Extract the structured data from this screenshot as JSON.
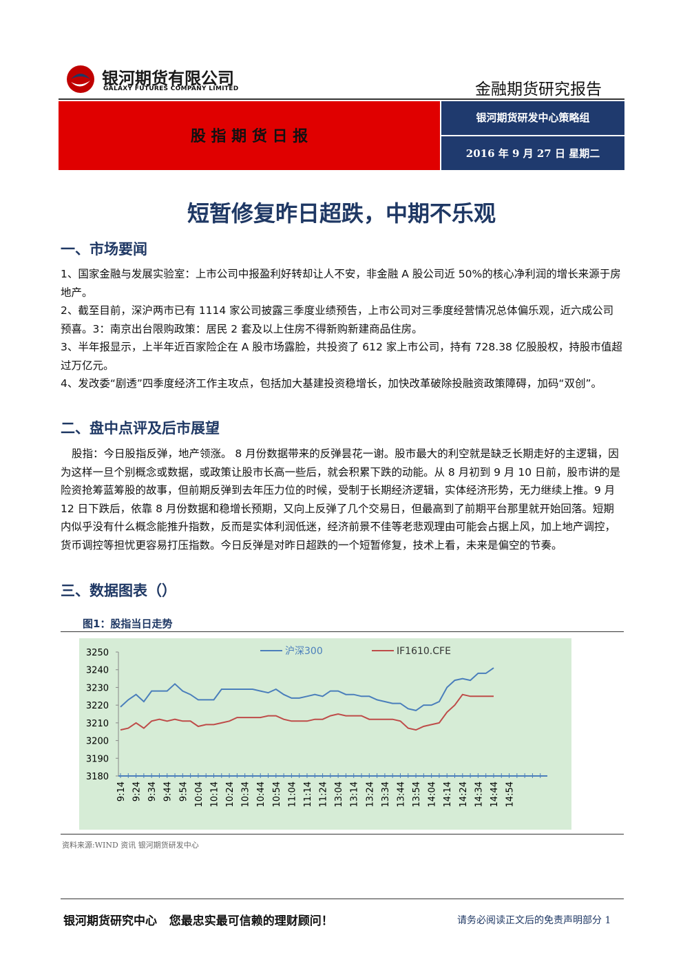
{
  "header": {
    "company_cn": "银河期货有限公司",
    "company_en": "GALAXY FUTURES COMPANY LIMITED",
    "report_type": "金融期货研究报告"
  },
  "banner": {
    "title": "股 指 期 货 日 报",
    "team": "银河期货研发中心策略组",
    "date": "2016 年 9 月 27 日 星期二"
  },
  "title": "短暂修复昨日超跌，中期不乐观",
  "sections": [
    {
      "heading": "一、市场要闻",
      "paragraphs": [
        "1、国家金融与发展实验室：上市公司中报盈利好转却让人不安，非金融 A 股公司近 50%的核心净利润的增长来源于房地产。",
        "2、截至目前，深沪两市已有 1114 家公司披露三季度业绩预告，上市公司对三季度经营情况总体偏乐观，近六成公司预喜。3：南京出台限购政策：居民 2 套及以上住房不得新购新建商品住房。",
        "3、半年报显示，上半年近百家险企在 A 股市场露脸，共投资了 612 家上市公司，持有 728.38 亿股股权，持股市值超过万亿元。",
        "4、发改委“剧透”四季度经济工作主攻点，包括加大基建投资稳增长，加快改革破除投融资政策障碍，加码“双创”。"
      ]
    },
    {
      "heading": "二、盘中点评及后市展望",
      "paragraphs": [
        "股指：今日股指反弹，地产领涨。 8 月份数据带来的反弹昙花一谢。股市最大的利空就是缺乏长期走好的主逻辑，因为这样一旦个别概念或数据，或政策让股市长高一些后，就会积累下跌的动能。从 8 月初到 9 月 10 日前，股市讲的是险资抢筹蓝筹股的故事，但前期反弹到去年压力位的时候，受制于长期经济逻辑，实体经济形势，无力继续上推。9 月 12 日下跌后，依靠 8 月份数据和稳增长预期，又向上反弹了几个交易日，但最高到了前期平台那里就开始回落。短期内似乎没有什么概念能推升指数，反而是实体利润低迷，经济前景不佳等老悲观理由可能会占据上风，加上地产调控，货币调控等担忧更容易打压指数。今日反弹是对昨日超跌的一个短暂修复，技术上看，未来是偏空的节奏。"
      ]
    },
    {
      "heading": "三、数据图表（）",
      "paragraphs": []
    }
  ],
  "figure": {
    "caption": "图1：股指当日走势",
    "source": "资料来源:WIND 资讯   银河期货研发中心"
  },
  "chart_data": {
    "type": "line",
    "categories": [
      "9:14",
      null,
      "9:24",
      null,
      "9:34",
      null,
      "9:44",
      null,
      "9:54",
      null,
      "10:04",
      null,
      "10:14",
      null,
      "10:24",
      null,
      "10:34",
      null,
      "10:44",
      null,
      "10:54",
      null,
      "11:04",
      null,
      "11:14",
      null,
      "11:24",
      null,
      "13:04",
      null,
      "13:14",
      null,
      "13:24",
      null,
      "13:34",
      null,
      "13:44",
      null,
      "13:54",
      null,
      "14:04",
      null,
      "14:14",
      null,
      "14:24",
      null,
      "14:34",
      null,
      "14:44",
      null,
      "14:54",
      null,
      null,
      null,
      null
    ],
    "series": [
      {
        "name": "沪深300",
        "color": "#4a7ebb",
        "values": [
          3219,
          3223,
          3226,
          3222,
          3228,
          3228,
          3228,
          3232,
          3228,
          3226,
          3223,
          3223,
          3223,
          3229,
          3229,
          3229,
          3229,
          3229,
          3228,
          3227,
          3229,
          3226,
          3224,
          3224,
          3225,
          3226,
          3225,
          3228,
          3228,
          3226,
          3226,
          3225,
          3225,
          3223,
          3222,
          3221,
          3221,
          3218,
          3217,
          3220,
          3220,
          3222,
          3230,
          3234,
          3235,
          3234,
          3238,
          3238,
          3241,
          null,
          null,
          null,
          null,
          null,
          null
        ]
      },
      {
        "name": "IF1610.CFE",
        "color": "#be4b48",
        "values": [
          3206,
          3207,
          3210,
          3207,
          3211,
          3212,
          3211,
          3212,
          3211,
          3211,
          3208,
          3209,
          3209,
          3210,
          3211,
          3213,
          3213,
          3213,
          3213,
          3214,
          3214,
          3212,
          3211,
          3211,
          3211,
          3212,
          3212,
          3214,
          3215,
          3214,
          3214,
          3214,
          3212,
          3212,
          3212,
          3212,
          3211,
          3207,
          3206,
          3208,
          3209,
          3210,
          3216,
          3220,
          3226,
          3225,
          3225,
          3225,
          3225,
          null,
          null,
          null,
          null,
          null,
          null
        ]
      }
    ],
    "ylim": [
      3180,
      3250
    ],
    "yticks": [
      3180,
      3190,
      3200,
      3210,
      3220,
      3230,
      3240,
      3250
    ],
    "grid": false
  },
  "footer": {
    "slogan": "银河期货研究中心   您最忠实最可信赖的理财顾问！",
    "disclaimer": "请务必阅读正文后的免责声明部分",
    "page": "1"
  }
}
